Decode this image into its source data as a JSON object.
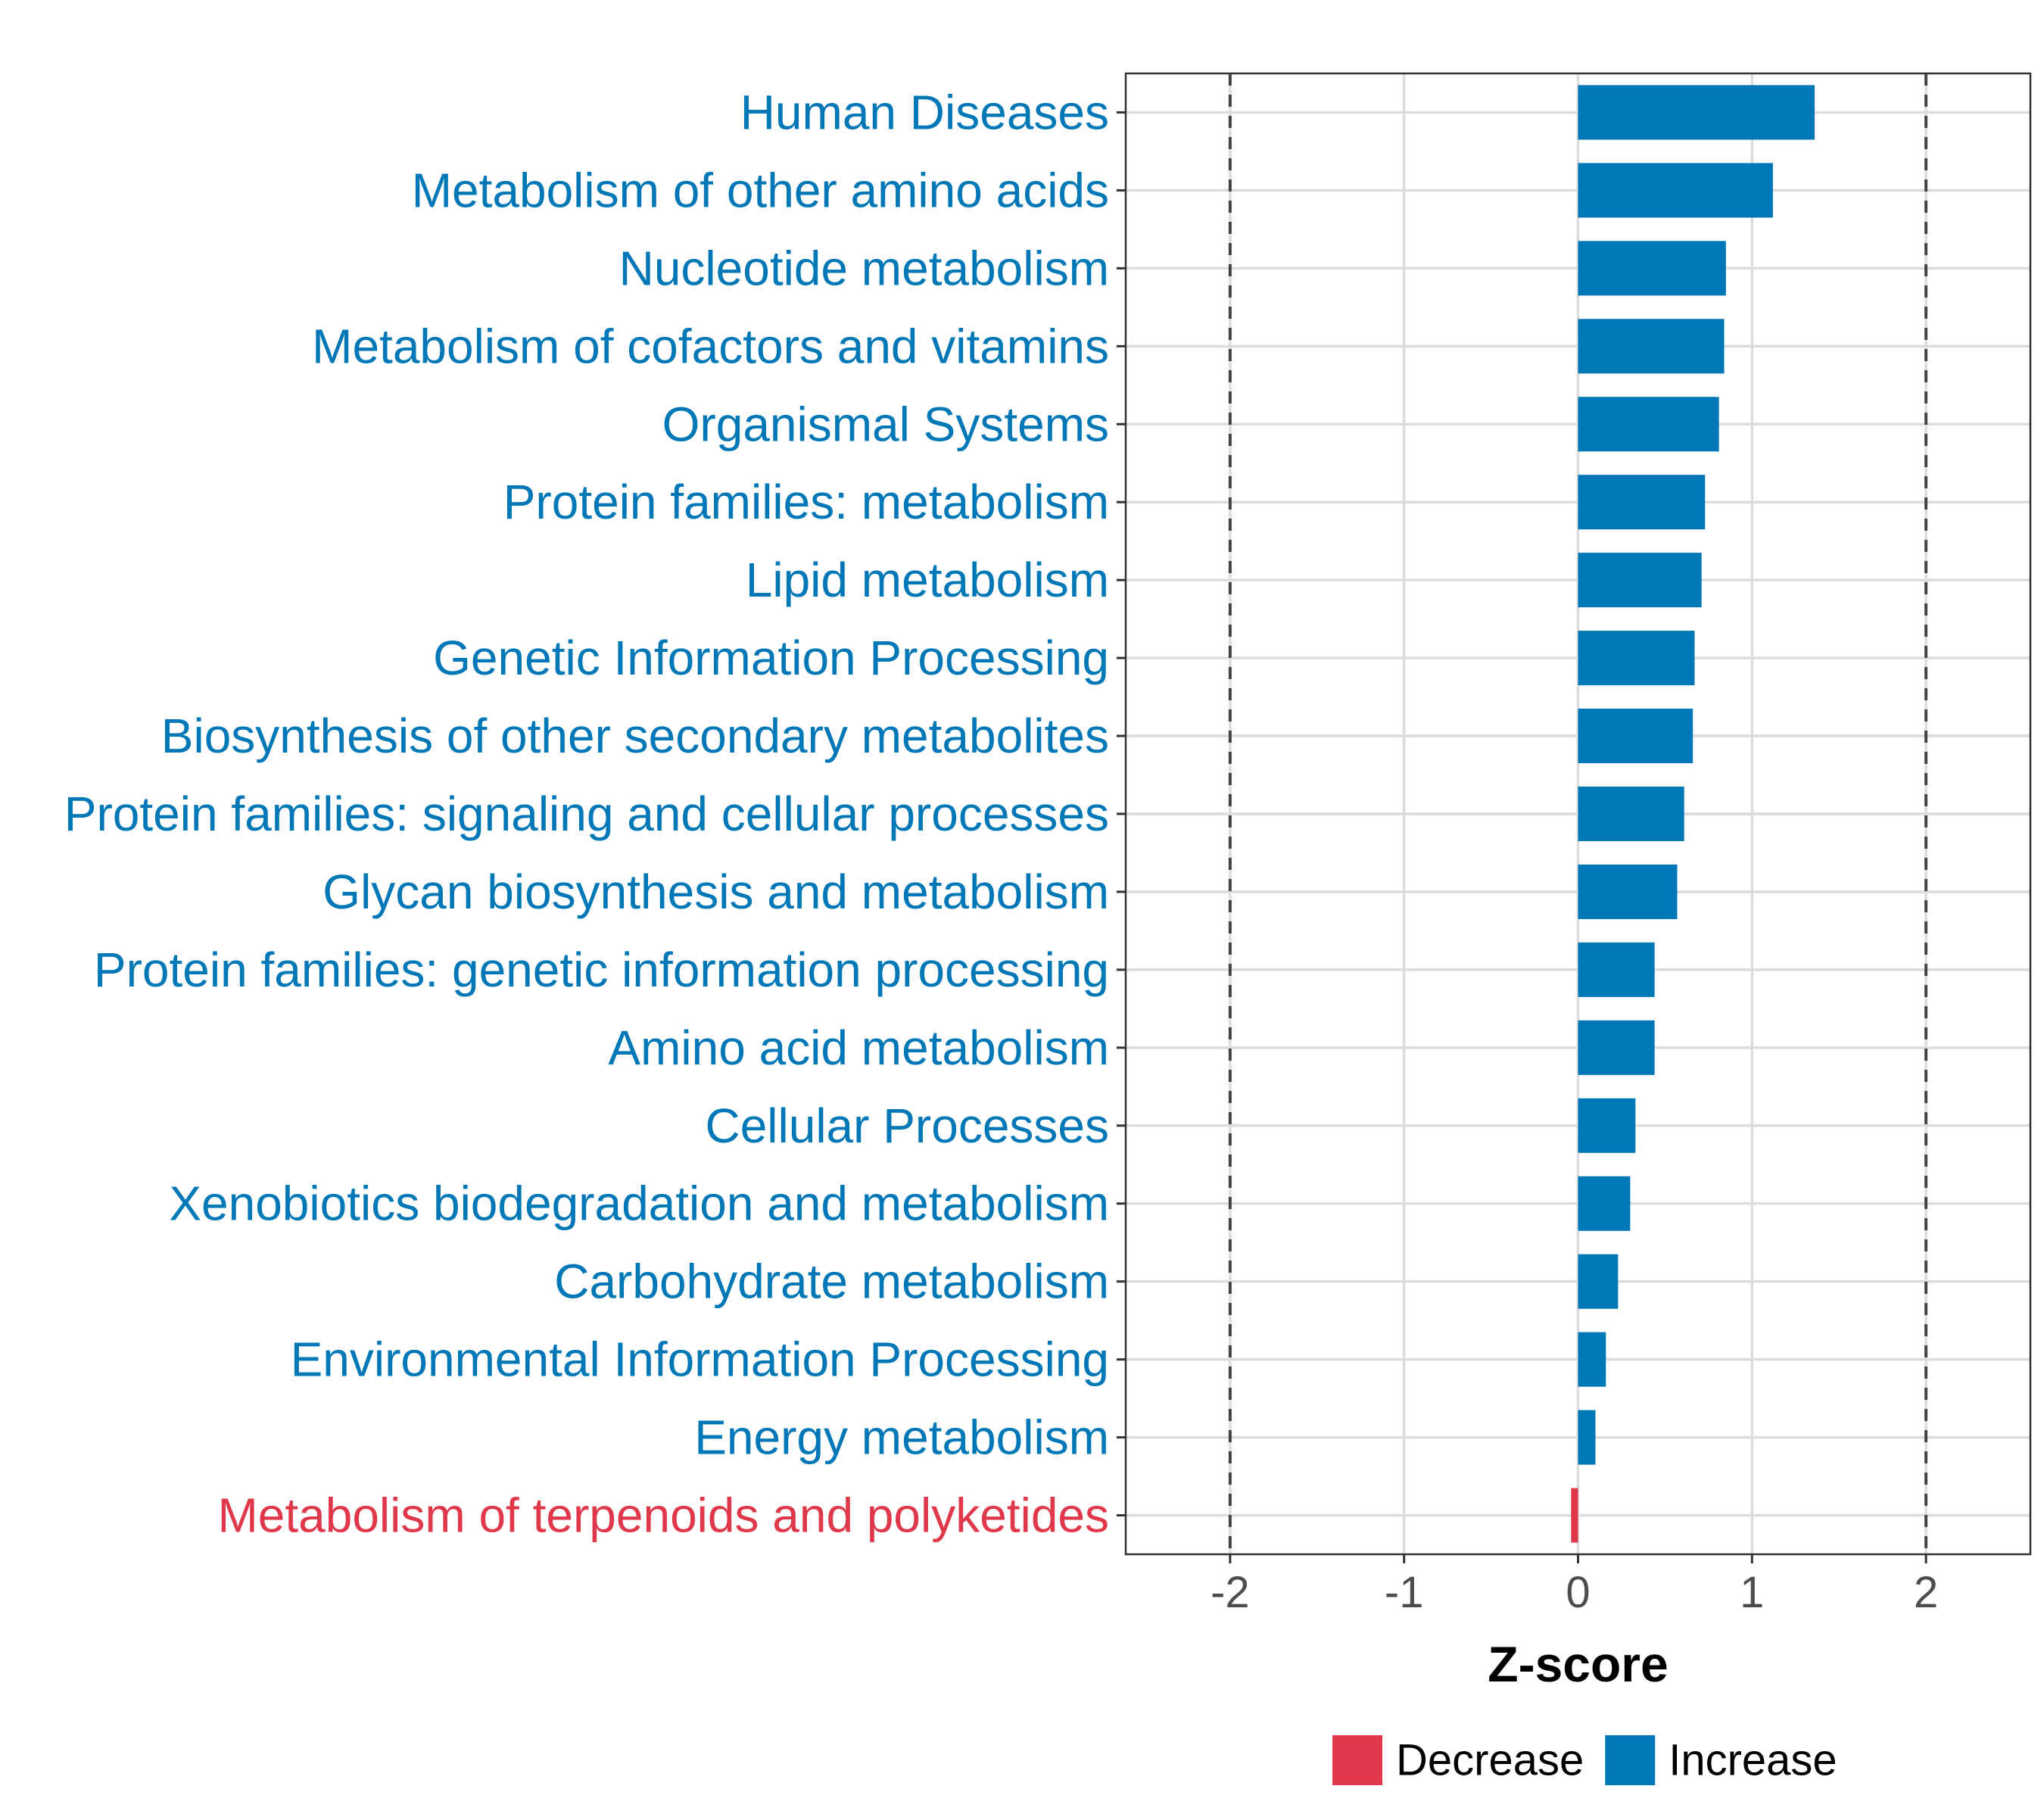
{
  "chart_data": {
    "type": "bar",
    "orientation": "horizontal",
    "title": "",
    "xlabel": "Z-score",
    "ylabel": "",
    "xlim": [
      -2.6,
      2.6
    ],
    "x_ticks": [
      -2,
      -1,
      0,
      1,
      2
    ],
    "x_tick_labels": [
      "-2",
      "-1",
      "0",
      "1",
      "2"
    ],
    "reference_lines": [
      -2,
      2
    ],
    "grid": true,
    "legend_position": "bottom",
    "colors": {
      "Decrease": "#e0384b",
      "Increase": "#0077b6"
    },
    "legend": [
      {
        "label": "Decrease",
        "color": "#e0384b"
      },
      {
        "label": "Increase",
        "color": "#0077b6"
      }
    ],
    "categories": [
      "Human Diseases",
      "Metabolism of other amino acids",
      "Nucleotide metabolism",
      "Metabolism of cofactors and vitamins",
      "Organismal Systems",
      "Protein families: metabolism",
      "Lipid metabolism",
      "Genetic Information Processing",
      "Biosynthesis of other secondary metabolites",
      "Protein families: signaling and cellular processes",
      "Glycan biosynthesis and metabolism",
      "Protein families: genetic information processing",
      "Amino acid metabolism",
      "Cellular Processes",
      "Xenobiotics biodegradation and metabolism",
      "Carbohydrate metabolism",
      "Environmental Information Processing",
      "Energy metabolism",
      "Metabolism of terpenoids and polyketides"
    ],
    "values": [
      1.36,
      1.12,
      0.85,
      0.84,
      0.81,
      0.73,
      0.71,
      0.67,
      0.66,
      0.61,
      0.57,
      0.44,
      0.44,
      0.33,
      0.3,
      0.23,
      0.16,
      0.1,
      -0.04
    ],
    "groups": [
      "Increase",
      "Increase",
      "Increase",
      "Increase",
      "Increase",
      "Increase",
      "Increase",
      "Increase",
      "Increase",
      "Increase",
      "Increase",
      "Increase",
      "Increase",
      "Increase",
      "Increase",
      "Increase",
      "Increase",
      "Increase",
      "Decrease"
    ]
  }
}
